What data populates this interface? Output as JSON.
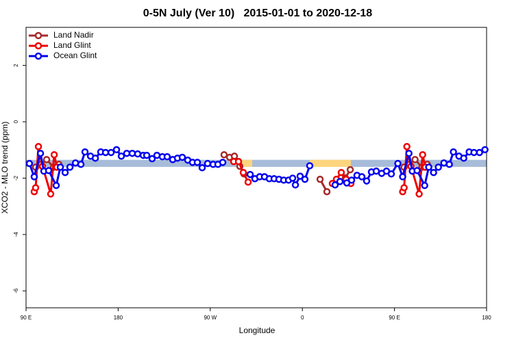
{
  "chart_data": {
    "type": "line",
    "title": "0-5N July (Ver 10)   2015-01-01 to 2020-12-18",
    "xlabel": "Longitude",
    "ylabel": "XCO2 - MLO trend (ppm)",
    "xlim": [
      90,
      540
    ],
    "ylim": [
      -6.6,
      3.35
    ],
    "xticks": [
      {
        "value": 90,
        "label": "90 E"
      },
      180,
      {
        "value": 270,
        "label": "90 W"
      },
      {
        "value": 360,
        "label": "0"
      },
      {
        "value": 450,
        "label": "90 E"
      },
      {
        "value": 540,
        "label": "180"
      }
    ],
    "yticks": [
      -6,
      -4,
      -2,
      0,
      2
    ],
    "legend": "upper left",
    "bands": [
      {
        "xlim": [
          90,
          540
        ],
        "ylim": [
          -1.6,
          -1.35
        ],
        "color": "#a7bcd9"
      },
      {
        "xlim": [
          295.6,
          311
        ],
        "ylim": [
          -1.6,
          -1.35
        ],
        "color": "#fcd57e"
      },
      {
        "xlim": [
          367.2,
          407.4
        ],
        "ylim": [
          -1.6,
          -1.35
        ],
        "color": "#fcd57e"
      }
    ],
    "series": [
      {
        "name": "Land Nadir",
        "color": "#a52a2a",
        "x": [
          99.4,
          104.7,
          110.1,
          116.8,
          122.1,
          null,
          283.5,
          288.9,
          293.6,
          298.9,
          303.0,
          null,
          377.3,
          384.0,
          null,
          402.0,
          406.8,
          null,
          459.4,
          464.7,
          470.1,
          476.8,
          482.1
        ],
        "values": [
          -1.61,
          -1.51,
          -1.34,
          -1.61,
          -1.51,
          null,
          -1.17,
          -1.26,
          -1.22,
          -1.58,
          -1.85,
          null,
          -2.04,
          -2.48,
          null,
          -1.99,
          -1.7,
          null,
          -1.61,
          -1.51,
          -1.34,
          -1.61,
          -1.51
        ]
      },
      {
        "name": "Land Glint",
        "color": "#ee0000",
        "x": [
          98.0,
          99.4,
          102.1,
          106.1,
          114.1,
          117.5,
          120.1,
          null,
          292.9,
          297.6,
          302.3,
          307.0,
          null,
          389.3,
          393.3,
          398.0,
          402.7,
          407.4,
          null,
          458.0,
          459.4,
          462.1,
          466.1,
          474.1,
          477.5,
          480.1
        ],
        "values": [
          -2.48,
          -2.34,
          -0.88,
          -1.58,
          -2.56,
          -1.17,
          -1.61,
          null,
          -1.41,
          -1.41,
          -1.8,
          -2.14,
          null,
          -2.19,
          -2.04,
          -1.8,
          -2.04,
          -2.19,
          null,
          -2.48,
          -2.34,
          -0.88,
          -1.58,
          -2.56,
          -1.17,
          -1.61
        ]
      },
      {
        "name": "Ocean Glint",
        "color": "#0000ee",
        "x": [
          93.3,
          98.0,
          104.1,
          107.4,
          112.1,
          119.5,
          123.5,
          128.2,
          132.9,
          138.3,
          143.6,
          147.6,
          153.0,
          157.7,
          163.0,
          167.7,
          173.1,
          178.4,
          183.1,
          188.4,
          193.8,
          199.1,
          204.5,
          207.9,
          213.2,
          217.9,
          223.2,
          227.9,
          233.3,
          238.0,
          242.7,
          248.0,
          252.7,
          257.4,
          262.1,
          267.4,
          272.8,
          277.5,
          282.2,
          null,
          309.0,
          313.6,
          318.3,
          323.0,
          327.7,
          332.4,
          337.1,
          341.8,
          346.5,
          350.5,
          353.2,
          357.8,
          362.5,
          367.2,
          null,
          392.0,
          396.7,
          403.4,
          408.1,
          413.4,
          418.1,
          422.8,
          427.5,
          432.2,
          437.5,
          442.2,
          446.9,
          453.3,
          458.0,
          464.1,
          467.4,
          472.1,
          479.5,
          483.5,
          488.2,
          492.9,
          498.3,
          503.6,
          507.6,
          513.0,
          517.7,
          523.0,
          527.7,
          533.1,
          538.4
        ],
        "values": [
          -1.48,
          -1.95,
          -1.12,
          -1.75,
          -1.73,
          -2.26,
          -1.61,
          -1.8,
          -1.61,
          -1.46,
          -1.51,
          -1.07,
          -1.22,
          -1.29,
          -1.07,
          -1.09,
          -1.09,
          -0.99,
          -1.22,
          -1.12,
          -1.12,
          -1.14,
          -1.19,
          -1.19,
          -1.31,
          -1.19,
          -1.24,
          -1.24,
          -1.34,
          -1.29,
          -1.26,
          -1.36,
          -1.44,
          -1.44,
          -1.63,
          -1.48,
          -1.51,
          -1.51,
          -1.44,
          null,
          -1.87,
          -2.02,
          -1.95,
          -1.95,
          -2.02,
          -2.02,
          -2.04,
          -2.07,
          -2.07,
          -2.0,
          -2.24,
          -1.93,
          -2.04,
          -1.56,
          null,
          -2.24,
          -2.12,
          -2.17,
          -2.07,
          -1.9,
          -1.95,
          -2.1,
          -1.78,
          -1.75,
          -1.83,
          -1.75,
          -1.85,
          -1.48,
          -1.95,
          -1.12,
          -1.75,
          -1.73,
          -2.26,
          -1.61,
          -1.8,
          -1.61,
          -1.46,
          -1.51,
          -1.07,
          -1.22,
          -1.29,
          -1.07,
          -1.09,
          -1.09,
          -0.99
        ]
      }
    ]
  }
}
